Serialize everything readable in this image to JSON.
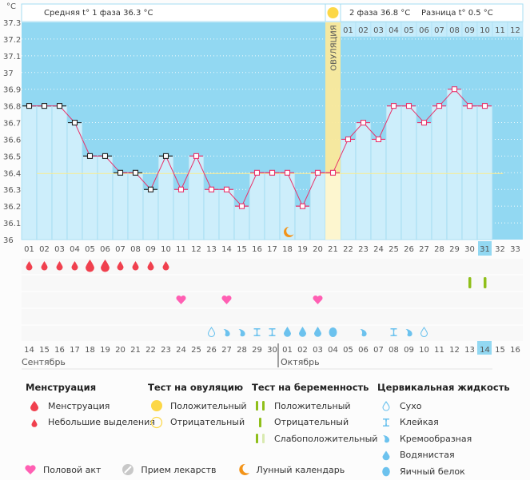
{
  "header": {
    "unit": "°C",
    "phase1_avg": "Средняя t° 1 фаза 36.3 °C",
    "phase2_avg": "2 фаза 36.8 °C",
    "difference": "Разница t° 0.5 °C",
    "ovulation_label": "ОВУЛЯЦИЯ"
  },
  "chart_data": {
    "type": "line",
    "title": "",
    "xlabel": "",
    "ylabel": "°C",
    "ylim": [
      36.0,
      37.3
    ],
    "y_ticks": [
      "37.3",
      "37.2",
      "37.1",
      "37",
      "36.9",
      "36.8",
      "36.7",
      "36.6",
      "36.5",
      "36.4",
      "36.3",
      "36.2",
      "36.1",
      "36"
    ],
    "coverline": 36.4,
    "ovulation_day": 21,
    "cycle_days": [
      "01",
      "02",
      "03",
      "04",
      "05",
      "06",
      "07",
      "08",
      "09",
      "10",
      "11",
      "12",
      "13",
      "14",
      "15",
      "16",
      "17",
      "18",
      "19",
      "20",
      "21",
      "22",
      "23",
      "24",
      "25",
      "26",
      "27",
      "28",
      "29",
      "30",
      "31",
      "32",
      "33"
    ],
    "post_ovulation_days": [
      "01",
      "02",
      "03",
      "04",
      "05",
      "06",
      "07",
      "08",
      "09",
      "10",
      "11",
      "12"
    ],
    "current_day": "31",
    "series": [
      {
        "name": "Базальная температура",
        "values": [
          36.8,
          36.8,
          36.8,
          36.7,
          36.5,
          36.5,
          36.4,
          36.4,
          36.3,
          36.5,
          36.3,
          36.5,
          36.3,
          36.3,
          36.2,
          36.4,
          36.4,
          36.4,
          36.2,
          36.4,
          36.4,
          36.6,
          36.7,
          36.6,
          36.8,
          36.8,
          36.7,
          36.8,
          36.9,
          36.8,
          36.8,
          null,
          null
        ]
      }
    ],
    "menstruation_days": [
      1,
      2,
      3,
      4,
      5,
      6,
      7,
      8,
      9,
      10
    ],
    "heavy_menstruation_days": [
      5,
      6
    ],
    "pregnancy_test_negative_days": [
      30,
      31
    ],
    "intercourse_days": [
      11,
      14,
      20
    ],
    "moon_day": 18,
    "cervical_fluid": [
      {
        "day": 13,
        "type": "dry"
      },
      {
        "day": 14,
        "type": "creamy"
      },
      {
        "day": 15,
        "type": "creamy"
      },
      {
        "day": 16,
        "type": "sticky"
      },
      {
        "day": 17,
        "type": "sticky"
      },
      {
        "day": 18,
        "type": "watery"
      },
      {
        "day": 19,
        "type": "watery"
      },
      {
        "day": 20,
        "type": "watery"
      },
      {
        "day": 21,
        "type": "eggwhite"
      },
      {
        "day": 23,
        "type": "creamy"
      },
      {
        "day": 25,
        "type": "sticky"
      },
      {
        "day": 26,
        "type": "creamy"
      },
      {
        "day": 27,
        "type": "dry"
      }
    ],
    "dates": [
      {
        "d": "14",
        "red": true
      },
      {
        "d": "15"
      },
      {
        "d": "16"
      },
      {
        "d": "17"
      },
      {
        "d": "18"
      },
      {
        "d": "19"
      },
      {
        "d": "20",
        "red": true
      },
      {
        "d": "21",
        "red": true
      },
      {
        "d": "22"
      },
      {
        "d": "23"
      },
      {
        "d": "24"
      },
      {
        "d": "25"
      },
      {
        "d": "26"
      },
      {
        "d": "27",
        "red": true
      },
      {
        "d": "28",
        "red": true
      },
      {
        "d": "29"
      },
      {
        "d": "30"
      },
      {
        "d": "01"
      },
      {
        "d": "02"
      },
      {
        "d": "03"
      },
      {
        "d": "04",
        "red": true
      },
      {
        "d": "05",
        "red": true
      },
      {
        "d": "06"
      },
      {
        "d": "07"
      },
      {
        "d": "08"
      },
      {
        "d": "09"
      },
      {
        "d": "10"
      },
      {
        "d": "11",
        "red": true
      },
      {
        "d": "12",
        "red": true
      },
      {
        "d": "13"
      },
      {
        "d": "14",
        "today": true
      },
      {
        "d": "15"
      },
      {
        "d": "16"
      }
    ],
    "months": [
      "Сентябрь",
      "Октябрь"
    ]
  },
  "legend": {
    "menstruation": {
      "title": "Менструация",
      "items": [
        "Менструация",
        "Небольшие выделения"
      ]
    },
    "ovulation_test": {
      "title": "Тест на овуляцию",
      "items": [
        "Положительный",
        "Отрицательный"
      ]
    },
    "pregnancy_test": {
      "title": "Тест на беременность",
      "items": [
        "Положительный",
        "Отрицательный",
        "Слабоположительный"
      ]
    },
    "cervical_fluid": {
      "title": "Цервикальная жидкость",
      "items": [
        "Сухо",
        "Клейкая",
        "Кремообразная",
        "Водянистая",
        "Яичный белок"
      ]
    },
    "other": [
      "Половой акт",
      "Прием лекарств",
      "Лунный календарь"
    ]
  },
  "colors": {
    "sky": "#92d8f2",
    "bar": "#cdeefb",
    "line": "#e8336b",
    "ovulation": "#fbe99a",
    "coverline": "#f5eb9a",
    "blood": "#f0404e",
    "heart": "#ff5fb3",
    "preg": "#8fbf1a",
    "fluid": "#6cc2ee",
    "moon": "#f39317",
    "red_date": "#e8204a",
    "sun": "#fcd746"
  }
}
